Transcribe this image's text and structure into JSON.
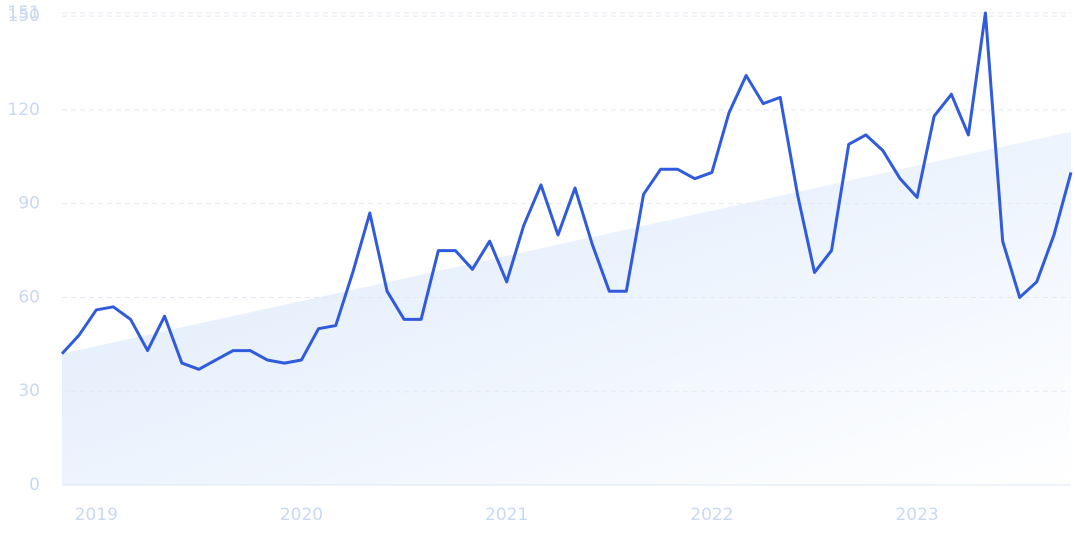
{
  "chart_data": {
    "type": "line",
    "x": [
      2018.833,
      2018.917,
      2019.0,
      2019.083,
      2019.167,
      2019.25,
      2019.333,
      2019.417,
      2019.5,
      2019.583,
      2019.667,
      2019.75,
      2019.833,
      2019.917,
      2020.0,
      2020.083,
      2020.167,
      2020.25,
      2020.333,
      2020.417,
      2020.5,
      2020.583,
      2020.667,
      2020.75,
      2020.833,
      2020.917,
      2021.0,
      2021.083,
      2021.167,
      2021.25,
      2021.333,
      2021.417,
      2021.5,
      2021.583,
      2021.667,
      2021.75,
      2021.833,
      2021.917,
      2022.0,
      2022.083,
      2022.167,
      2022.25,
      2022.333,
      2022.417,
      2022.5,
      2022.583,
      2022.667,
      2022.75,
      2022.833,
      2022.917,
      2023.0,
      2023.083,
      2023.167,
      2023.25,
      2023.333,
      2023.417,
      2023.5,
      2023.583,
      2023.667,
      2023.75
    ],
    "series": [
      {
        "color": "#2f5bdc",
        "values": [
          42,
          48,
          56,
          57,
          53,
          43,
          54,
          39,
          37,
          40,
          43,
          43,
          40,
          39,
          40,
          50,
          51,
          68,
          87,
          62,
          53,
          53,
          75,
          75,
          69,
          78,
          65,
          83,
          96,
          80,
          95,
          77,
          62,
          62,
          93,
          101,
          101,
          98,
          100,
          119,
          131,
          122,
          124,
          93,
          68,
          75,
          109,
          112,
          107,
          98,
          92,
          118,
          125,
          112,
          151,
          78,
          60,
          65,
          80,
          100
        ]
      }
    ],
    "trend": {
      "x": [
        2018.833,
        2023.75
      ],
      "values": [
        42,
        113
      ],
      "color": "#dce9fb"
    },
    "xlim": [
      2018.833,
      2023.75
    ],
    "xticks": [
      2019,
      2020,
      2021,
      2022,
      2023
    ],
    "ylim": [
      0,
      151
    ],
    "yticks": [
      0,
      30,
      60,
      90,
      120,
      150,
      151
    ],
    "grid": true
  }
}
